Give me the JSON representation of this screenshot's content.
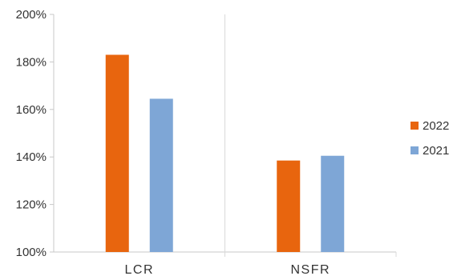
{
  "chart_data": {
    "type": "bar",
    "categories": [
      "LCR",
      "NSFR"
    ],
    "series": [
      {
        "name": "2022",
        "values": [
          183,
          138.5
        ],
        "color": "#e8650e"
      },
      {
        "name": "2021",
        "values": [
          164.5,
          140.5
        ],
        "color": "#7ea6d6"
      }
    ],
    "ylim": [
      100,
      200
    ],
    "yticks": [
      "100%",
      "120%",
      "140%",
      "160%",
      "180%",
      "200%"
    ],
    "ytick_values": [
      100,
      120,
      140,
      160,
      180,
      200
    ],
    "grid": false,
    "legend_position": "right"
  },
  "colors": {
    "axis": "#c8c8c8",
    "separator": "#d9d9d9",
    "text": "#333333"
  }
}
